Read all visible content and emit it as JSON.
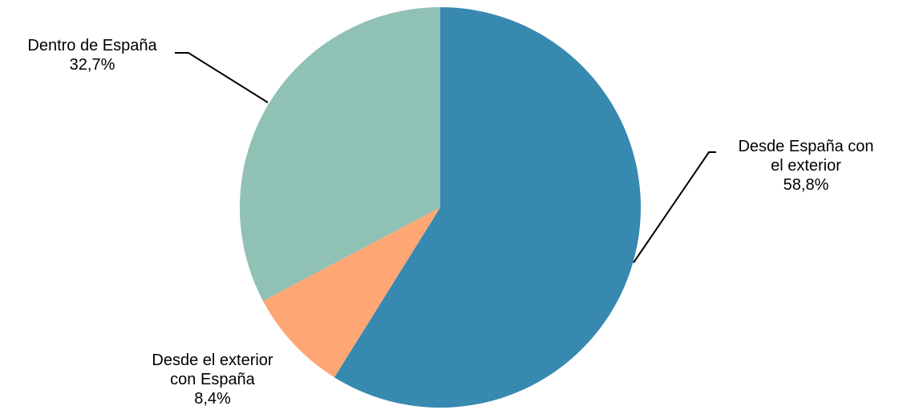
{
  "chart_data": {
    "type": "pie",
    "start_angle_deg": 0,
    "direction": "clockwise",
    "slices": [
      {
        "name": "Desde España con el exterior",
        "label_lines": [
          "Desde España con",
          "el exterior"
        ],
        "value": 58.8,
        "value_label": "58,8%",
        "color": "#3789B0"
      },
      {
        "name": "Desde el exterior con España",
        "label_lines": [
          "Desde el exterior",
          "con España"
        ],
        "value": 8.4,
        "value_label": "8,4%",
        "color": "#FEA775"
      },
      {
        "name": "Dentro de España",
        "label_lines": [
          "Dentro de España"
        ],
        "value": 32.7,
        "value_label": "32,7%",
        "color": "#90C1B5"
      }
    ],
    "legend": "none",
    "label_placement": "outside-with-leader-lines"
  }
}
